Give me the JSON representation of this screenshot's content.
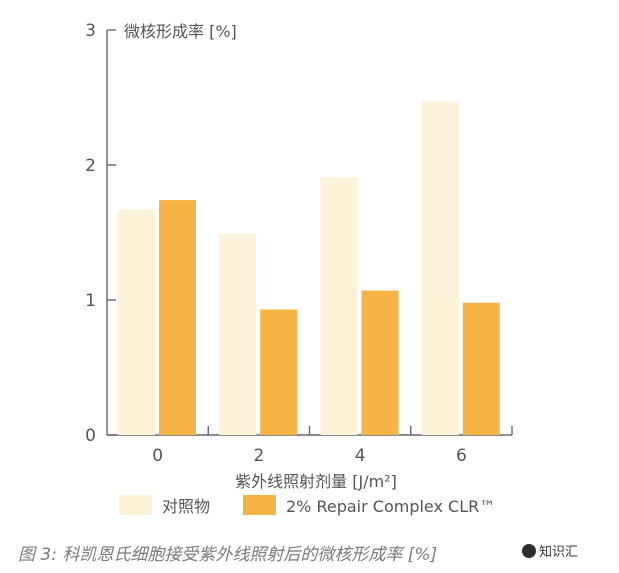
{
  "chart_data": {
    "type": "bar",
    "ylabel": "微核形成率 [%]",
    "xlabel": "紫外线照射剂量 [J/m²]",
    "categories": [
      "0",
      "2",
      "4",
      "6"
    ],
    "ylim": [
      0,
      3
    ],
    "yticks": [
      "0",
      "1",
      "2",
      "3"
    ],
    "series": [
      {
        "name": "对照物",
        "color": "#fdf1d8",
        "values": [
          1.67,
          1.49,
          1.91,
          2.47
        ]
      },
      {
        "name": "2% Repair Complex CLR™",
        "color": "#f6b445",
        "values": [
          1.74,
          0.93,
          1.07,
          0.98
        ]
      }
    ],
    "legend_position": "bottom",
    "grid": false
  },
  "caption": "图 3: 科凯恩氏细胞接受紫外线照射后的微核形成率 [%]",
  "watermark": "知识汇"
}
